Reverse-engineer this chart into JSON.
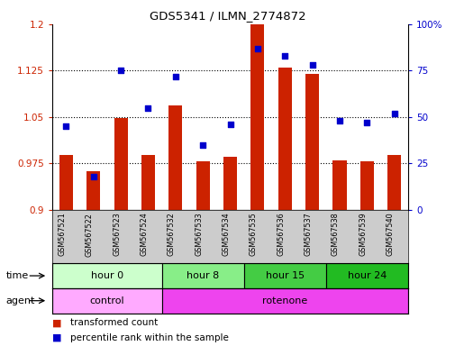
{
  "title": "GDS5341 / ILMN_2774872",
  "samples": [
    "GSM567521",
    "GSM567522",
    "GSM567523",
    "GSM567524",
    "GSM567532",
    "GSM567533",
    "GSM567534",
    "GSM567535",
    "GSM567536",
    "GSM567537",
    "GSM567538",
    "GSM567539",
    "GSM567540"
  ],
  "bar_values": [
    0.988,
    0.962,
    1.048,
    0.988,
    1.068,
    0.978,
    0.985,
    1.2,
    1.13,
    1.12,
    0.98,
    0.978,
    0.988
  ],
  "dot_values": [
    45,
    18,
    75,
    55,
    72,
    35,
    46,
    87,
    83,
    78,
    48,
    47,
    52
  ],
  "ylim_left": [
    0.9,
    1.2
  ],
  "ylim_right": [
    0,
    100
  ],
  "yticks_left": [
    0.9,
    0.975,
    1.05,
    1.125,
    1.2
  ],
  "yticks_right": [
    0,
    25,
    50,
    75,
    100
  ],
  "ytick_labels_left": [
    "0.9",
    "0.975",
    "1.05",
    "1.125",
    "1.2"
  ],
  "ytick_labels_right": [
    "0",
    "25",
    "50",
    "75",
    "100%"
  ],
  "bar_color": "#cc2200",
  "dot_color": "#0000cc",
  "grid_color": "#000000",
  "bg_color": "#ffffff",
  "plot_bg": "#ffffff",
  "time_groups": [
    {
      "label": "hour 0",
      "start": 0,
      "end": 4,
      "color": "#ccffcc"
    },
    {
      "label": "hour 8",
      "start": 4,
      "end": 7,
      "color": "#88ee88"
    },
    {
      "label": "hour 15",
      "start": 7,
      "end": 10,
      "color": "#44cc44"
    },
    {
      "label": "hour 24",
      "start": 10,
      "end": 13,
      "color": "#22bb22"
    }
  ],
  "agent_groups": [
    {
      "label": "control",
      "start": 0,
      "end": 4,
      "color": "#ffaaff"
    },
    {
      "label": "rotenone",
      "start": 4,
      "end": 13,
      "color": "#ee44ee"
    }
  ],
  "time_label": "time",
  "agent_label": "agent",
  "legend1": "transformed count",
  "legend2": "percentile rank within the sample",
  "sample_bg": "#cccccc"
}
